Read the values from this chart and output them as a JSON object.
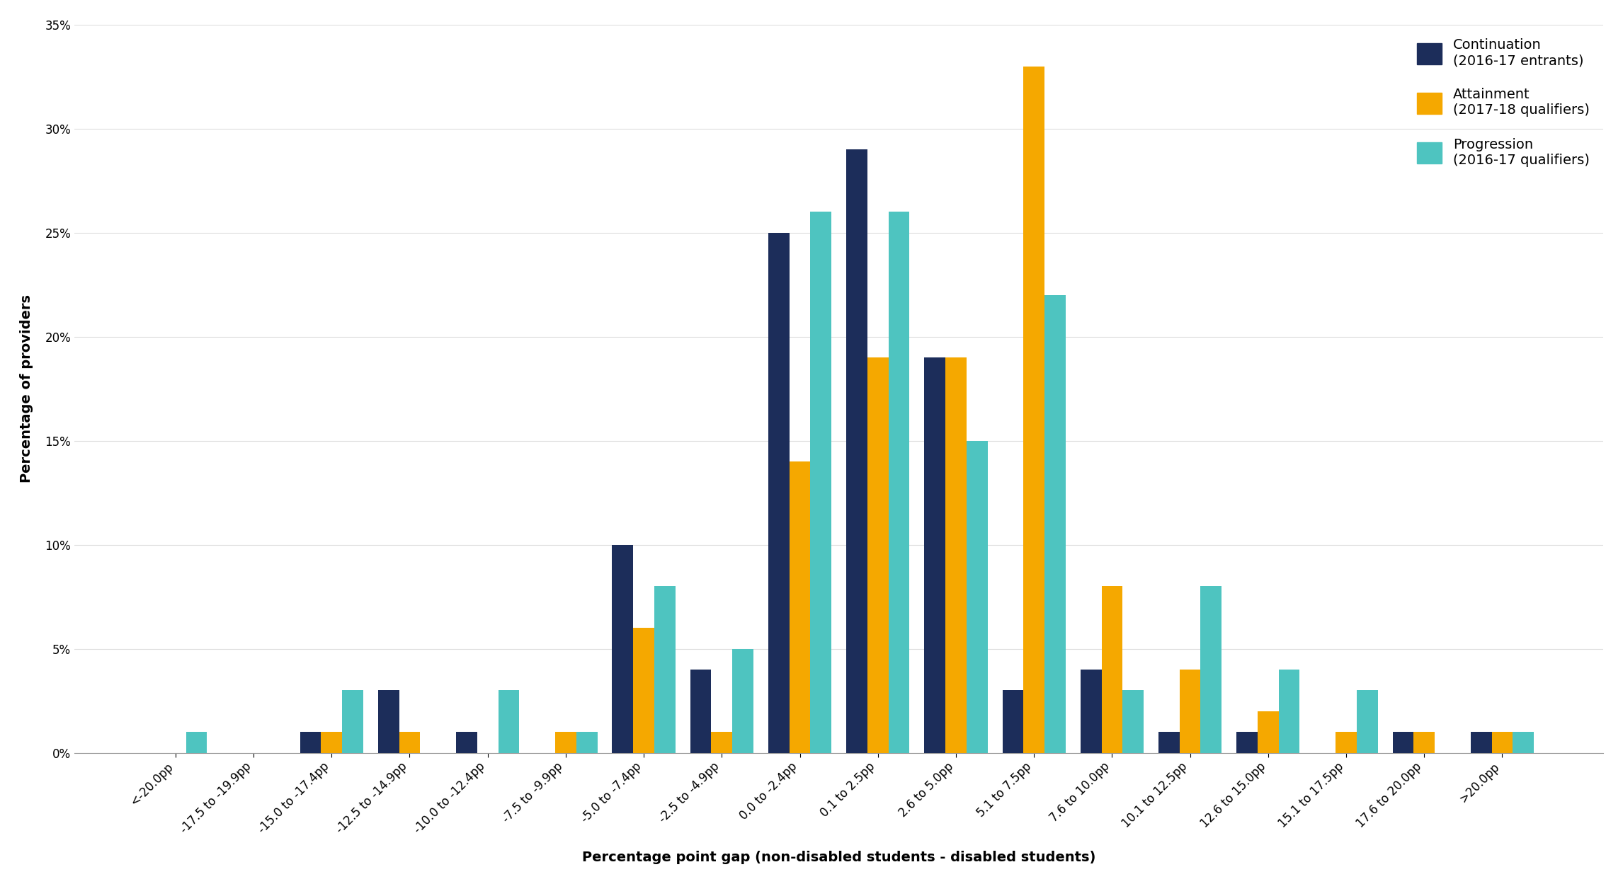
{
  "categories": [
    "<-20.0pp",
    "-17.5 to -19.9pp",
    "-15.0 to -17.4pp",
    "-12.5 to -14.9pp",
    "-10.0 to -12.4pp",
    "-7.5 to -9.9pp",
    "-5.0 to -7.4pp",
    "-2.5 to -4.9pp",
    "0.0 to -2.4pp",
    "0.1 to 2.5pp",
    "2.6 to 5.0pp",
    "5.1 to 7.5pp",
    "7.6 to 10.0pp",
    "10.1 to 12.5pp",
    "12.6 to 15.0pp",
    "15.1 to 17.5pp",
    "17.6 to 20.0pp",
    ">20.0pp"
  ],
  "continuation": [
    0,
    0,
    1,
    3,
    1,
    0,
    10,
    4,
    25,
    29,
    19,
    3,
    4,
    1,
    1,
    0,
    1,
    1
  ],
  "attainment": [
    0,
    0,
    1,
    1,
    0,
    1,
    6,
    1,
    14,
    19,
    19,
    33,
    8,
    4,
    2,
    1,
    1,
    1
  ],
  "progression": [
    1,
    0,
    3,
    0,
    3,
    1,
    8,
    5,
    26,
    26,
    15,
    22,
    3,
    8,
    4,
    3,
    0,
    1
  ],
  "continuation_color": "#1c2d5a",
  "attainment_color": "#f5a800",
  "progression_color": "#4ec4c0",
  "ylabel": "Percentage of providers",
  "xlabel": "Percentage point gap (non-disabled students - disabled students)",
  "ylim": [
    0,
    35
  ],
  "yticks": [
    0,
    5,
    10,
    15,
    20,
    25,
    30,
    35
  ],
  "bar_width": 0.27,
  "legend_labels": [
    "Continuation\n(2016-17 entrants)",
    "Attainment\n(2017-18 qualifiers)",
    "Progression\n(2016-17 qualifiers)"
  ]
}
